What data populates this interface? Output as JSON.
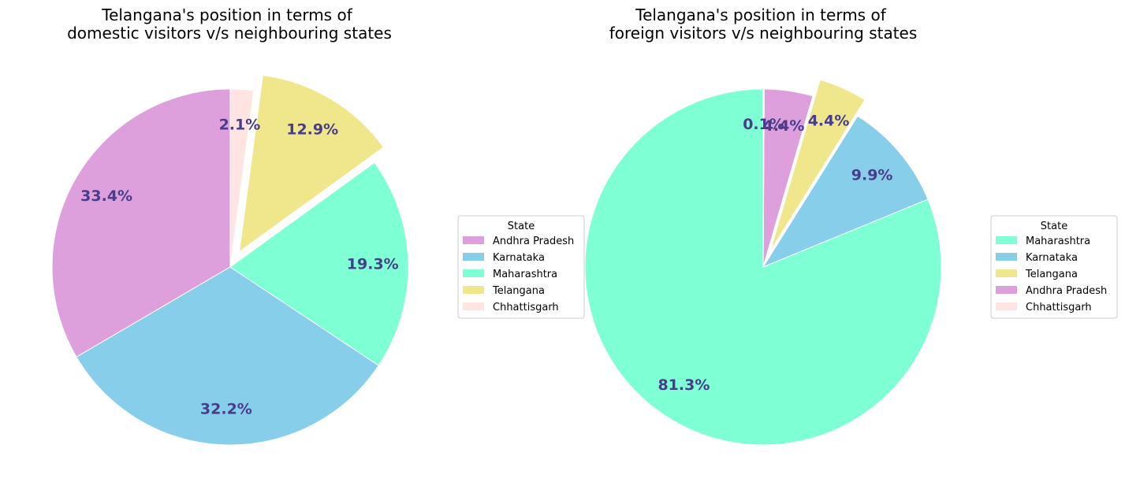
{
  "chart_data": [
    {
      "type": "pie",
      "title_line1": "Telangana's position in terms of",
      "title_line2": "domestic visitors v/s neighbouring states",
      "legend_title": "State",
      "slices": [
        {
          "label": "Andhra Pradesh",
          "value": 33.4,
          "pct_label": "33.4%",
          "color": "#dda0dd",
          "explode": false
        },
        {
          "label": "Karnataka",
          "value": 32.2,
          "pct_label": "32.2%",
          "color": "#87ceeb",
          "explode": false
        },
        {
          "label": "Maharashtra",
          "value": 19.3,
          "pct_label": "19.3%",
          "color": "#7fffd4",
          "explode": false
        },
        {
          "label": "Telangana",
          "value": 12.9,
          "pct_label": "12.9%",
          "color": "#f0e68c",
          "explode": true
        },
        {
          "label": "Chhattisgarh",
          "value": 2.1,
          "pct_label": "2.1%",
          "color": "#ffe4e1",
          "explode": false
        }
      ],
      "start_angle_deg": 90,
      "direction": "counterclockwise",
      "legend_position": "right"
    },
    {
      "type": "pie",
      "title_line1": "Telangana's position in terms of",
      "title_line2": "foreign visitors v/s neighbouring states",
      "legend_title": "State",
      "slices": [
        {
          "label": "Maharashtra",
          "value": 81.3,
          "pct_label": "81.3%",
          "color": "#7fffd4",
          "explode": false
        },
        {
          "label": "Karnataka",
          "value": 9.9,
          "pct_label": "9.9%",
          "color": "#87ceeb",
          "explode": false
        },
        {
          "label": "Telangana",
          "value": 4.4,
          "pct_label": "4.4%",
          "color": "#f0e68c",
          "explode": true
        },
        {
          "label": "Andhra Pradesh",
          "value": 4.4,
          "pct_label": "4.4%",
          "color": "#dda0dd",
          "explode": false
        },
        {
          "label": "Chhattisgarh",
          "value": 0.1,
          "pct_label": "0.1%",
          "color": "#ffe4e1",
          "explode": false
        }
      ],
      "start_angle_deg": 90,
      "direction": "counterclockwise",
      "legend_position": "right"
    }
  ]
}
